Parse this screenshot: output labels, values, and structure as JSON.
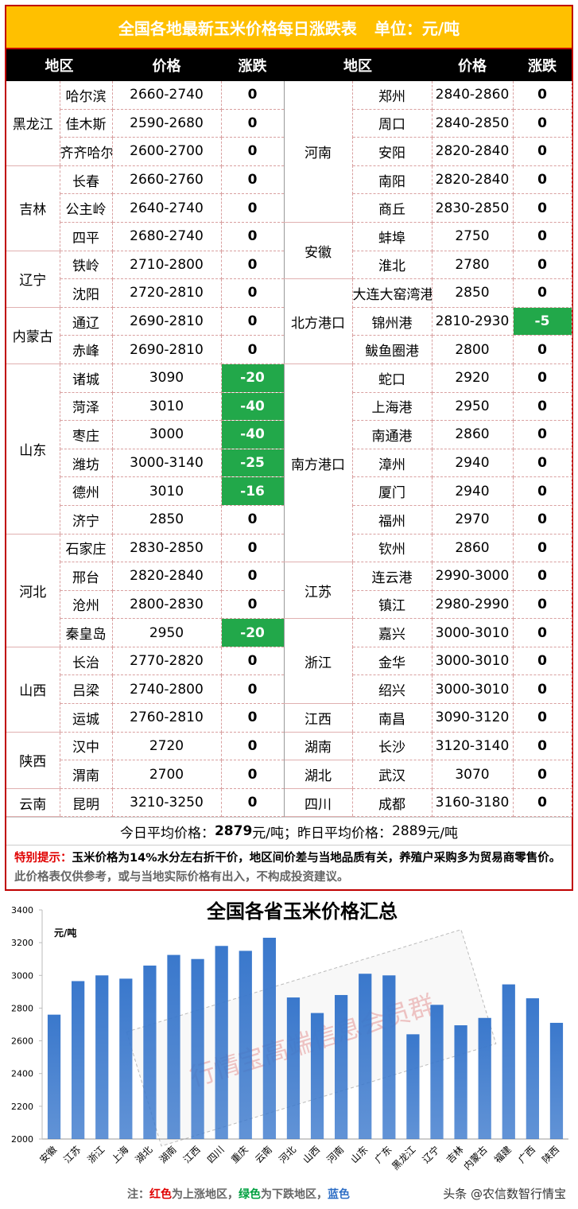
{
  "header": {
    "title": "全国各地最新玉米价格每日涨跌表",
    "unit": "单位：元/吨"
  },
  "columns": [
    "地区",
    "价格",
    "涨跌",
    "地区",
    "价格",
    "涨跌"
  ],
  "left": [
    {
      "region": "黑龙江",
      "rows": [
        [
          "哈尔滨",
          "2660-2740",
          0
        ],
        [
          "佳木斯",
          "2590-2680",
          0
        ],
        [
          "齐齐哈尔",
          "2600-2700",
          0
        ]
      ]
    },
    {
      "region": "吉林",
      "rows": [
        [
          "长春",
          "2660-2760",
          0
        ],
        [
          "公主岭",
          "2640-2740",
          0
        ],
        [
          "四平",
          "2680-2740",
          0
        ]
      ]
    },
    {
      "region": "辽宁",
      "rows": [
        [
          "铁岭",
          "2710-2800",
          0
        ],
        [
          "沈阳",
          "2720-2810",
          0
        ]
      ]
    },
    {
      "region": "内蒙古",
      "rows": [
        [
          "通辽",
          "2690-2810",
          0
        ],
        [
          "赤峰",
          "2690-2810",
          0
        ]
      ]
    },
    {
      "region": "山东",
      "rows": [
        [
          "诸城",
          "3090",
          -20
        ],
        [
          "菏泽",
          "3010",
          -40
        ],
        [
          "枣庄",
          "3000",
          -40
        ],
        [
          "潍坊",
          "3000-3140",
          -25
        ],
        [
          "德州",
          "3010",
          -16
        ],
        [
          "济宁",
          "2850",
          0
        ]
      ]
    },
    {
      "region": "河北",
      "rows": [
        [
          "石家庄",
          "2830-2850",
          0
        ],
        [
          "邢台",
          "2820-2840",
          0
        ],
        [
          "沧州",
          "2800-2830",
          0
        ],
        [
          "秦皇岛",
          "2950",
          -20
        ]
      ]
    },
    {
      "region": "山西",
      "rows": [
        [
          "长治",
          "2770-2820",
          0
        ],
        [
          "吕梁",
          "2740-2800",
          0
        ],
        [
          "运城",
          "2760-2810",
          0
        ]
      ]
    },
    {
      "region": "陕西",
      "rows": [
        [
          "汉中",
          "2720",
          0
        ],
        [
          "渭南",
          "2700",
          0
        ]
      ]
    },
    {
      "region": "云南",
      "rows": [
        [
          "昆明",
          "3210-3250",
          0
        ]
      ]
    }
  ],
  "right": [
    {
      "region": "河南",
      "rows": [
        [
          "郑州",
          "2840-2860",
          0
        ],
        [
          "周口",
          "2840-2850",
          0
        ],
        [
          "安阳",
          "2820-2840",
          0
        ],
        [
          "南阳",
          "2820-2840",
          0
        ],
        [
          "商丘",
          "2830-2850",
          0
        ]
      ]
    },
    {
      "region": "安徽",
      "rows": [
        [
          "蚌埠",
          "2750",
          0
        ],
        [
          "淮北",
          "2780",
          0
        ]
      ]
    },
    {
      "region": "北方港口",
      "rows": [
        [
          "大连大窑湾港",
          "2850",
          0
        ],
        [
          "锦州港",
          "2810-2930",
          -5
        ],
        [
          "鲅鱼圈港",
          "2800",
          0
        ]
      ]
    },
    {
      "region": "南方港口",
      "rows": [
        [
          "蛇口",
          "2920",
          0
        ],
        [
          "上海港",
          "2950",
          0
        ],
        [
          "南通港",
          "2860",
          0
        ],
        [
          "漳州",
          "2940",
          0
        ],
        [
          "厦门",
          "2940",
          0
        ],
        [
          "福州",
          "2970",
          0
        ],
        [
          "钦州",
          "2860",
          0
        ]
      ]
    },
    {
      "region": "江苏",
      "rows": [
        [
          "连云港",
          "2990-3000",
          0
        ],
        [
          "镇江",
          "2980-2990",
          0
        ]
      ]
    },
    {
      "region": "浙江",
      "rows": [
        [
          "嘉兴",
          "3000-3010",
          0
        ],
        [
          "金华",
          "3000-3010",
          0
        ],
        [
          "绍兴",
          "3000-3010",
          0
        ]
      ]
    },
    {
      "region": "江西",
      "rows": [
        [
          "南昌",
          "3090-3120",
          0
        ]
      ]
    },
    {
      "region": "湖南",
      "rows": [
        [
          "长沙",
          "3120-3140",
          0
        ]
      ]
    },
    {
      "region": "湖北",
      "rows": [
        [
          "武汉",
          "3070",
          0
        ]
      ]
    },
    {
      "region": "四川",
      "rows": [
        [
          "成都",
          "3160-3180",
          0
        ]
      ]
    }
  ],
  "average": {
    "today_label": "今日平均价格：",
    "today": 2879,
    "today_unit": "元/吨；",
    "yesterday_label": "昨日平均价格：",
    "yesterday": 2889,
    "yesterday_unit": "元/吨"
  },
  "note": {
    "label": "特别提示：",
    "bold": "玉米价格为14%水分左右折干价，地区间价差与当地品质有关，养殖户采购多为贸易商零售价。",
    "plain": "此价格表仅供参考，或与当地实际价格有出入，不构成投资建议。"
  },
  "chart_data": {
    "type": "bar",
    "title": "全国各省玉米价格汇总",
    "y_label": "元/吨",
    "categories": [
      "安徽",
      "江苏",
      "浙江",
      "上海",
      "湖北",
      "湖南",
      "江西",
      "四川",
      "重庆",
      "云南",
      "河北",
      "山西",
      "河南",
      "山东",
      "广东",
      "黑龙江",
      "辽宁",
      "吉林",
      "内蒙古",
      "福建",
      "广西",
      "陕西"
    ],
    "values": [
      2760,
      2965,
      3000,
      2980,
      3060,
      3125,
      3100,
      3180,
      3150,
      3230,
      2865,
      2770,
      2880,
      3010,
      3000,
      2640,
      2820,
      2695,
      2740,
      2945,
      2860,
      2710
    ],
    "color": "#3a78cc",
    "ylim": [
      2000,
      3400
    ],
    "yticks": [
      2000,
      2200,
      2400,
      2600,
      2800,
      3000,
      3200,
      3400
    ],
    "grid": false,
    "watermark": "行情宝高端信息会员群"
  },
  "footer": {
    "parts": [
      "注：",
      "红色",
      "为上涨地区，",
      "绿色",
      "为下跌地区，",
      "蓝色"
    ],
    "source": "头条 @农信数智行情宝"
  }
}
